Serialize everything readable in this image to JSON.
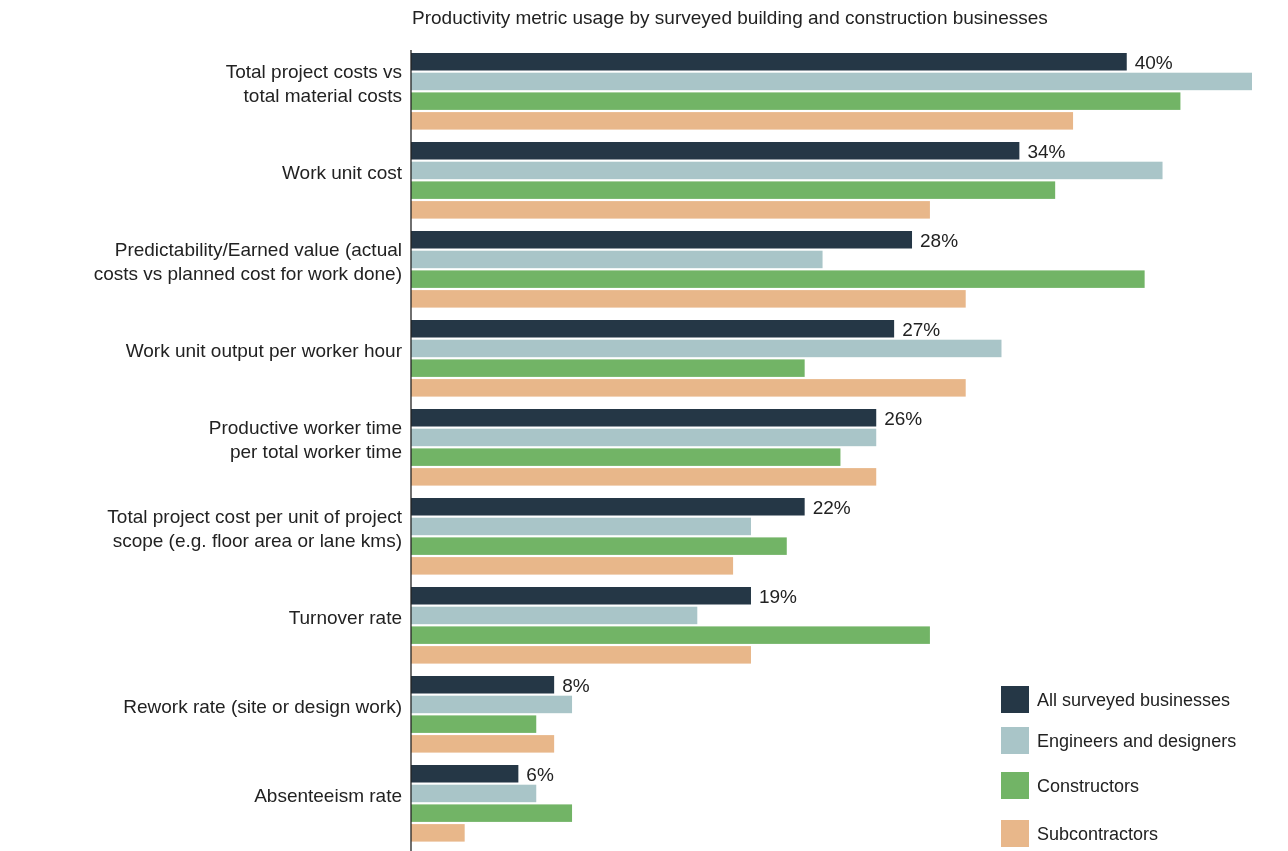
{
  "chart_data": {
    "type": "bar",
    "orientation": "horizontal",
    "title": "Productivity metric usage by surveyed building and construction businesses",
    "categories": [
      "Total project costs vs\ntotal material costs",
      "Work unit cost",
      "Predictability/Earned value (actual\ncosts vs planned cost for work done)",
      "Work unit output per worker hour",
      "Productive worker time\nper total worker time",
      "Total project cost per unit of project\nscope (e.g. floor area or lane kms)",
      "Turnover rate",
      "Rework rate (site or design work)",
      "Absenteeism rate"
    ],
    "series": [
      {
        "name": "All surveyed businesses",
        "color": "#253746",
        "values": [
          40,
          34,
          28,
          27,
          26,
          22,
          19,
          8,
          6
        ],
        "value_labels": [
          "40%",
          "34%",
          "28%",
          "27%",
          "26%",
          "22%",
          "19%",
          "8%",
          "6%"
        ]
      },
      {
        "name": "Engineers and designers",
        "color": "#a9c5c8",
        "values": [
          47,
          42,
          23,
          33,
          26,
          19,
          16,
          9,
          7
        ]
      },
      {
        "name": "Constructors",
        "color": "#72b466",
        "values": [
          43,
          36,
          41,
          22,
          24,
          21,
          29,
          7,
          9
        ]
      },
      {
        "name": "Subcontractors",
        "color": "#e8b78a",
        "values": [
          37,
          29,
          31,
          31,
          26,
          18,
          19,
          8,
          3
        ]
      }
    ],
    "legend": "bottom right"
  }
}
